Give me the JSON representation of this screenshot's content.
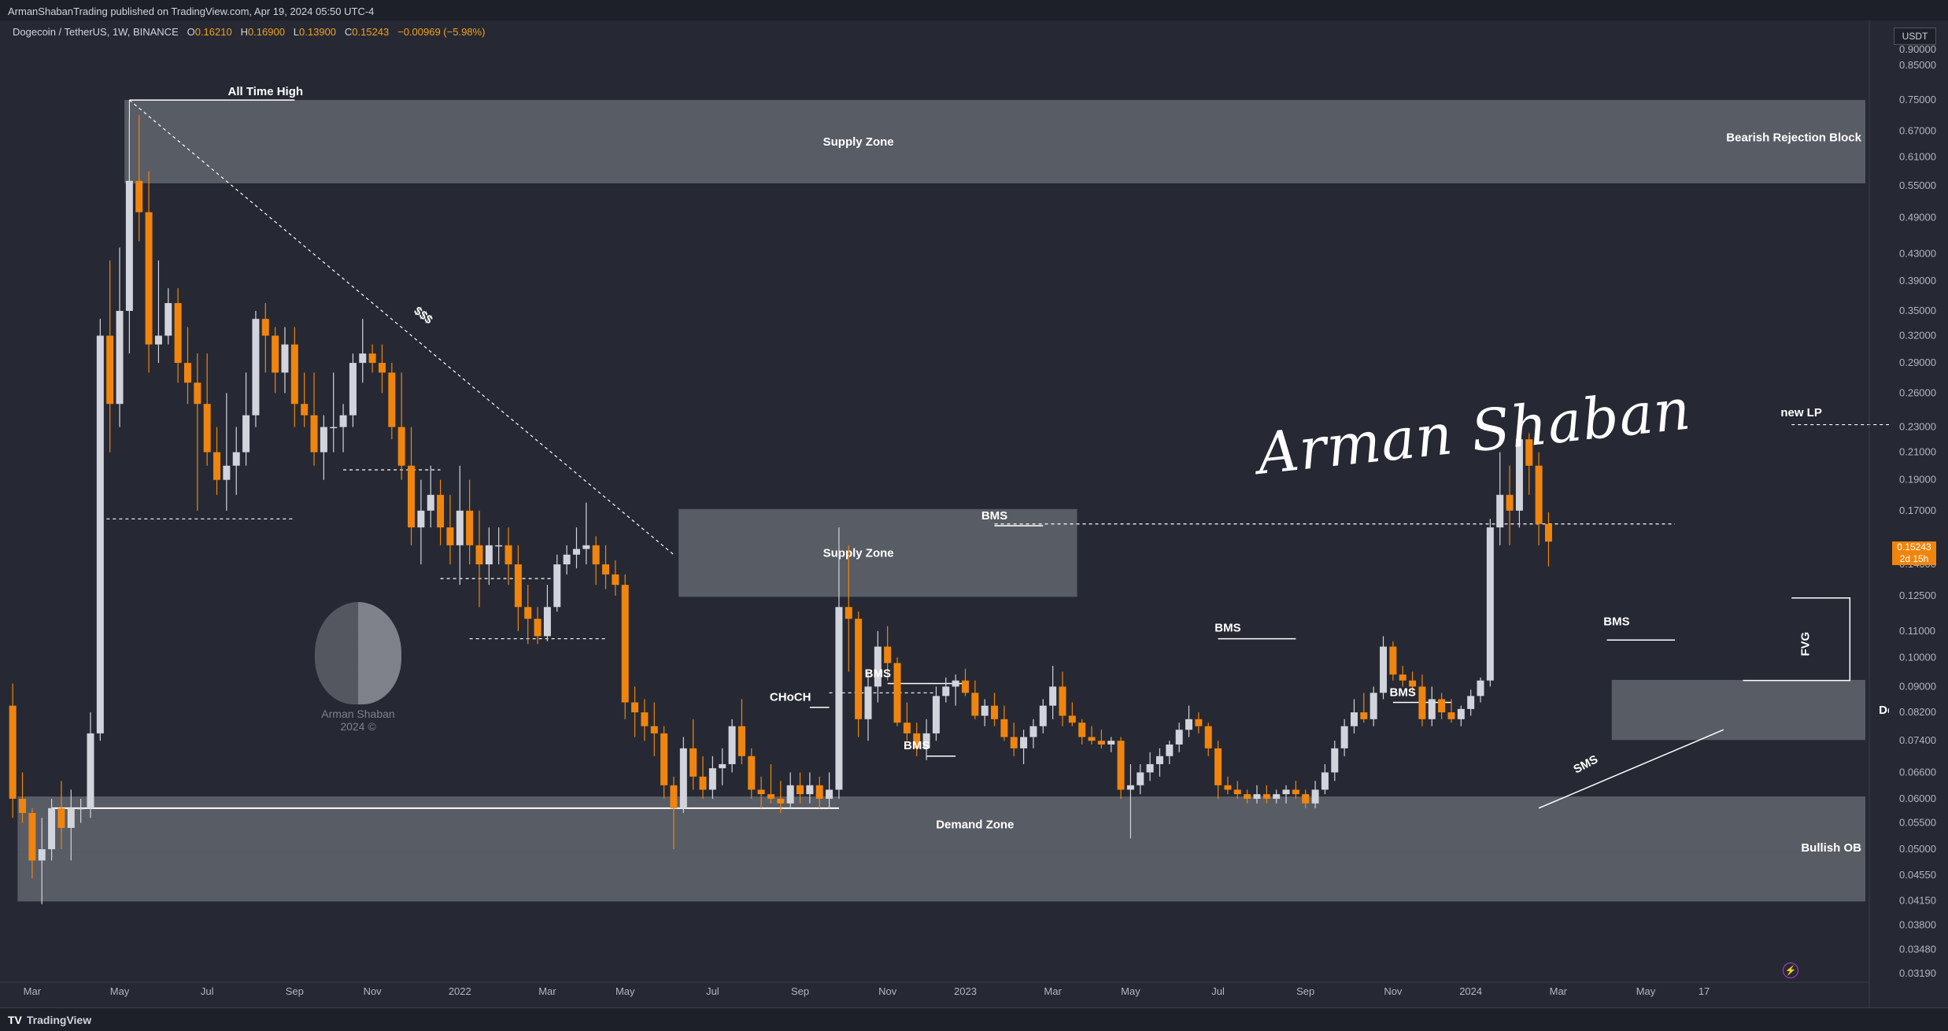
{
  "header": {
    "published": "ArmanShabanTrading published on TradingView.com, Apr 19, 2024 05:50 UTC-4"
  },
  "symbol": {
    "name": "Dogecoin / TetherUS, 1W, BINANCE",
    "open_label": "O",
    "open": "0.16210",
    "high_label": "H",
    "high": "0.16900",
    "low_label": "L",
    "low": "0.13900",
    "close_label": "C",
    "close": "0.15243",
    "change": "−0.00969 (−5.98%)"
  },
  "currency": "USDT",
  "price_tag": {
    "price": "0.15243",
    "countdown": "2d 15h"
  },
  "signature": "Arman Shaban",
  "watermark": {
    "line1": "Arman Shaban",
    "line2": "2024 ©"
  },
  "footer": {
    "brand": "TradingView",
    "logo": "TV"
  },
  "colors": {
    "background": "#262933",
    "up_candle": "#d1d4dc",
    "down_candle": "#f0850e",
    "zone": "#6a6d77",
    "price_tag": "#f0850e"
  },
  "chart_data": {
    "type": "candlestick",
    "title": "Dogecoin / TetherUS, 1W, BINANCE",
    "y_scale": "log",
    "ylim": [
      0.0319,
      0.9
    ],
    "y_ticks": [
      "0.90000",
      "0.85000",
      "0.75000",
      "0.67000",
      "0.61000",
      "0.55000",
      "0.49000",
      "0.43000",
      "0.39000",
      "0.35000",
      "0.32000",
      "0.29000",
      "0.26000",
      "0.23000",
      "0.21000",
      "0.19000",
      "0.17000",
      "0.14000",
      "0.12500",
      "0.11000",
      "0.10000",
      "0.09000",
      "0.08200",
      "0.07400",
      "0.06600",
      "0.06000",
      "0.05500",
      "0.05000",
      "0.04550",
      "0.04150",
      "0.03800",
      "0.03480",
      "0.03190"
    ],
    "x_ticks": [
      {
        "label": "Mar",
        "week": 2
      },
      {
        "label": "May",
        "week": 11
      },
      {
        "label": "Jul",
        "week": 20
      },
      {
        "label": "Sep",
        "week": 29
      },
      {
        "label": "Nov",
        "week": 37
      },
      {
        "label": "2022",
        "week": 46
      },
      {
        "label": "Mar",
        "week": 55
      },
      {
        "label": "May",
        "week": 63
      },
      {
        "label": "Jul",
        "week": 72
      },
      {
        "label": "Sep",
        "week": 81
      },
      {
        "label": "Nov",
        "week": 90
      },
      {
        "label": "2023",
        "week": 98
      },
      {
        "label": "Mar",
        "week": 107
      },
      {
        "label": "May",
        "week": 115
      },
      {
        "label": "Jul",
        "week": 124
      },
      {
        "label": "Sep",
        "week": 133
      },
      {
        "label": "Nov",
        "week": 142
      },
      {
        "label": "2024",
        "week": 150
      },
      {
        "label": "Mar",
        "week": 159
      },
      {
        "label": "May",
        "week": 168
      },
      {
        "label": "17",
        "week": 174
      }
    ],
    "candles": [
      [
        0.084,
        0.091,
        0.056,
        0.06
      ],
      [
        0.06,
        0.066,
        0.055,
        0.057
      ],
      [
        0.057,
        0.058,
        0.045,
        0.048
      ],
      [
        0.048,
        0.056,
        0.041,
        0.05
      ],
      [
        0.05,
        0.06,
        0.048,
        0.058
      ],
      [
        0.058,
        0.064,
        0.05,
        0.054
      ],
      [
        0.054,
        0.062,
        0.048,
        0.058
      ],
      [
        0.058,
        0.06,
        0.055,
        0.058
      ],
      [
        0.058,
        0.082,
        0.056,
        0.076
      ],
      [
        0.076,
        0.34,
        0.074,
        0.32
      ],
      [
        0.32,
        0.42,
        0.21,
        0.25
      ],
      [
        0.25,
        0.44,
        0.23,
        0.35
      ],
      [
        0.35,
        0.7,
        0.3,
        0.56
      ],
      [
        0.56,
        0.71,
        0.45,
        0.5
      ],
      [
        0.5,
        0.58,
        0.28,
        0.31
      ],
      [
        0.31,
        0.42,
        0.29,
        0.32
      ],
      [
        0.32,
        0.38,
        0.31,
        0.36
      ],
      [
        0.36,
        0.38,
        0.27,
        0.29
      ],
      [
        0.29,
        0.33,
        0.25,
        0.27
      ],
      [
        0.27,
        0.3,
        0.17,
        0.25
      ],
      [
        0.25,
        0.3,
        0.2,
        0.21
      ],
      [
        0.21,
        0.23,
        0.18,
        0.19
      ],
      [
        0.19,
        0.26,
        0.17,
        0.2
      ],
      [
        0.2,
        0.23,
        0.18,
        0.21
      ],
      [
        0.21,
        0.28,
        0.2,
        0.24
      ],
      [
        0.24,
        0.35,
        0.23,
        0.34
      ],
      [
        0.34,
        0.36,
        0.28,
        0.32
      ],
      [
        0.32,
        0.33,
        0.26,
        0.28
      ],
      [
        0.28,
        0.33,
        0.26,
        0.31
      ],
      [
        0.31,
        0.33,
        0.23,
        0.25
      ],
      [
        0.25,
        0.28,
        0.23,
        0.24
      ],
      [
        0.24,
        0.28,
        0.2,
        0.21
      ],
      [
        0.21,
        0.24,
        0.19,
        0.23
      ],
      [
        0.23,
        0.28,
        0.21,
        0.23
      ],
      [
        0.23,
        0.25,
        0.21,
        0.24
      ],
      [
        0.24,
        0.3,
        0.23,
        0.29
      ],
      [
        0.29,
        0.34,
        0.27,
        0.3
      ],
      [
        0.3,
        0.31,
        0.28,
        0.29
      ],
      [
        0.29,
        0.31,
        0.26,
        0.28
      ],
      [
        0.28,
        0.29,
        0.22,
        0.23
      ],
      [
        0.23,
        0.28,
        0.19,
        0.2
      ],
      [
        0.2,
        0.23,
        0.15,
        0.16
      ],
      [
        0.16,
        0.19,
        0.14,
        0.17
      ],
      [
        0.17,
        0.2,
        0.16,
        0.18
      ],
      [
        0.18,
        0.19,
        0.15,
        0.16
      ],
      [
        0.16,
        0.18,
        0.14,
        0.15
      ],
      [
        0.15,
        0.2,
        0.13,
        0.17
      ],
      [
        0.17,
        0.19,
        0.14,
        0.15
      ],
      [
        0.15,
        0.17,
        0.12,
        0.14
      ],
      [
        0.14,
        0.16,
        0.13,
        0.15
      ],
      [
        0.15,
        0.16,
        0.14,
        0.15
      ],
      [
        0.15,
        0.16,
        0.13,
        0.14
      ],
      [
        0.14,
        0.15,
        0.11,
        0.12
      ],
      [
        0.12,
        0.13,
        0.105,
        0.115
      ],
      [
        0.115,
        0.12,
        0.105,
        0.108
      ],
      [
        0.108,
        0.13,
        0.106,
        0.12
      ],
      [
        0.12,
        0.145,
        0.118,
        0.14
      ],
      [
        0.14,
        0.15,
        0.135,
        0.145
      ],
      [
        0.145,
        0.16,
        0.138,
        0.148
      ],
      [
        0.148,
        0.175,
        0.14,
        0.15
      ],
      [
        0.15,
        0.155,
        0.13,
        0.14
      ],
      [
        0.14,
        0.15,
        0.128,
        0.135
      ],
      [
        0.135,
        0.142,
        0.125,
        0.13
      ],
      [
        0.13,
        0.135,
        0.08,
        0.085
      ],
      [
        0.085,
        0.09,
        0.075,
        0.082
      ],
      [
        0.082,
        0.086,
        0.074,
        0.078
      ],
      [
        0.078,
        0.085,
        0.07,
        0.076
      ],
      [
        0.076,
        0.078,
        0.06,
        0.063
      ],
      [
        0.063,
        0.065,
        0.05,
        0.058
      ],
      [
        0.058,
        0.075,
        0.057,
        0.072
      ],
      [
        0.072,
        0.08,
        0.062,
        0.065
      ],
      [
        0.065,
        0.07,
        0.06,
        0.062
      ],
      [
        0.062,
        0.07,
        0.06,
        0.067
      ],
      [
        0.067,
        0.072,
        0.063,
        0.068
      ],
      [
        0.068,
        0.08,
        0.066,
        0.078
      ],
      [
        0.078,
        0.086,
        0.068,
        0.07
      ],
      [
        0.07,
        0.072,
        0.06,
        0.062
      ],
      [
        0.062,
        0.065,
        0.058,
        0.061
      ],
      [
        0.061,
        0.068,
        0.059,
        0.06
      ],
      [
        0.06,
        0.064,
        0.057,
        0.059
      ],
      [
        0.059,
        0.066,
        0.058,
        0.063
      ],
      [
        0.063,
        0.066,
        0.059,
        0.061
      ],
      [
        0.061,
        0.066,
        0.059,
        0.063
      ],
      [
        0.063,
        0.065,
        0.058,
        0.06
      ],
      [
        0.06,
        0.066,
        0.058,
        0.062
      ],
      [
        0.062,
        0.16,
        0.06,
        0.12
      ],
      [
        0.12,
        0.15,
        0.095,
        0.115
      ],
      [
        0.115,
        0.118,
        0.075,
        0.08
      ],
      [
        0.08,
        0.095,
        0.074,
        0.09
      ],
      [
        0.09,
        0.11,
        0.085,
        0.104
      ],
      [
        0.104,
        0.112,
        0.092,
        0.098
      ],
      [
        0.098,
        0.1,
        0.078,
        0.079
      ],
      [
        0.079,
        0.085,
        0.074,
        0.076
      ],
      [
        0.076,
        0.079,
        0.07,
        0.072
      ],
      [
        0.072,
        0.08,
        0.069,
        0.076
      ],
      [
        0.076,
        0.09,
        0.074,
        0.087
      ],
      [
        0.087,
        0.093,
        0.085,
        0.09
      ],
      [
        0.09,
        0.094,
        0.084,
        0.092
      ],
      [
        0.092,
        0.096,
        0.087,
        0.088
      ],
      [
        0.088,
        0.092,
        0.08,
        0.081
      ],
      [
        0.081,
        0.086,
        0.078,
        0.084
      ],
      [
        0.084,
        0.088,
        0.078,
        0.08
      ],
      [
        0.08,
        0.084,
        0.074,
        0.075
      ],
      [
        0.075,
        0.079,
        0.07,
        0.072
      ],
      [
        0.072,
        0.077,
        0.068,
        0.075
      ],
      [
        0.075,
        0.08,
        0.072,
        0.078
      ],
      [
        0.078,
        0.086,
        0.076,
        0.084
      ],
      [
        0.084,
        0.097,
        0.08,
        0.09
      ],
      [
        0.09,
        0.095,
        0.078,
        0.081
      ],
      [
        0.081,
        0.085,
        0.078,
        0.079
      ],
      [
        0.079,
        0.08,
        0.073,
        0.075
      ],
      [
        0.075,
        0.078,
        0.073,
        0.074
      ],
      [
        0.074,
        0.077,
        0.072,
        0.073
      ],
      [
        0.073,
        0.075,
        0.071,
        0.074
      ],
      [
        0.074,
        0.075,
        0.06,
        0.062
      ],
      [
        0.062,
        0.068,
        0.052,
        0.063
      ],
      [
        0.063,
        0.068,
        0.061,
        0.066
      ],
      [
        0.066,
        0.071,
        0.064,
        0.068
      ],
      [
        0.068,
        0.072,
        0.065,
        0.07
      ],
      [
        0.07,
        0.074,
        0.068,
        0.073
      ],
      [
        0.073,
        0.079,
        0.071,
        0.077
      ],
      [
        0.077,
        0.084,
        0.075,
        0.08
      ],
      [
        0.08,
        0.082,
        0.076,
        0.078
      ],
      [
        0.078,
        0.079,
        0.07,
        0.072
      ],
      [
        0.072,
        0.074,
        0.06,
        0.063
      ],
      [
        0.063,
        0.065,
        0.061,
        0.062
      ],
      [
        0.062,
        0.064,
        0.06,
        0.061
      ],
      [
        0.061,
        0.062,
        0.059,
        0.06
      ],
      [
        0.06,
        0.063,
        0.059,
        0.061
      ],
      [
        0.061,
        0.063,
        0.059,
        0.06
      ],
      [
        0.06,
        0.062,
        0.059,
        0.061
      ],
      [
        0.061,
        0.063,
        0.059,
        0.062
      ],
      [
        0.062,
        0.064,
        0.06,
        0.061
      ],
      [
        0.061,
        0.062,
        0.058,
        0.059
      ],
      [
        0.059,
        0.064,
        0.058,
        0.062
      ],
      [
        0.062,
        0.068,
        0.061,
        0.066
      ],
      [
        0.066,
        0.074,
        0.064,
        0.072
      ],
      [
        0.072,
        0.08,
        0.07,
        0.078
      ],
      [
        0.078,
        0.086,
        0.076,
        0.082
      ],
      [
        0.082,
        0.088,
        0.079,
        0.08
      ],
      [
        0.08,
        0.09,
        0.078,
        0.088
      ],
      [
        0.088,
        0.108,
        0.086,
        0.104
      ],
      [
        0.104,
        0.106,
        0.092,
        0.094
      ],
      [
        0.094,
        0.097,
        0.09,
        0.092
      ],
      [
        0.092,
        0.095,
        0.088,
        0.09
      ],
      [
        0.09,
        0.094,
        0.078,
        0.08
      ],
      [
        0.08,
        0.09,
        0.078,
        0.086
      ],
      [
        0.086,
        0.088,
        0.08,
        0.082
      ],
      [
        0.082,
        0.086,
        0.079,
        0.08
      ],
      [
        0.08,
        0.084,
        0.078,
        0.083
      ],
      [
        0.083,
        0.089,
        0.081,
        0.087
      ],
      [
        0.087,
        0.093,
        0.085,
        0.092
      ],
      [
        0.092,
        0.165,
        0.09,
        0.16
      ],
      [
        0.16,
        0.21,
        0.15,
        0.18
      ],
      [
        0.18,
        0.2,
        0.15,
        0.17
      ],
      [
        0.17,
        0.23,
        0.16,
        0.22
      ],
      [
        0.22,
        0.225,
        0.18,
        0.2
      ],
      [
        0.2,
        0.21,
        0.15,
        0.162
      ],
      [
        0.162,
        0.169,
        0.139,
        0.152
      ]
    ],
    "zones": [
      {
        "label": "Supply Zone",
        "from_week": 12,
        "to_week": 199,
        "top": 0.75,
        "bottom": 0.555,
        "label_week": 87
      },
      {
        "label": "Supply Zone",
        "from_week": 69,
        "to_week": 110,
        "top": 0.171,
        "bottom": 0.1245,
        "label_week": 87
      },
      {
        "label": "Demand Zone",
        "from_week": 1,
        "to_week": 199,
        "top": 0.0605,
        "bottom": 0.0495,
        "label_week": 99
      },
      {
        "label": "Demand Zone",
        "from_week": 165,
        "to_week": 199,
        "top": 0.0922,
        "bottom": 0.0742,
        "label_week": 196
      },
      {
        "label": "",
        "from_week": 1,
        "to_week": 199,
        "top": 0.0495,
        "bottom": 0.0414
      }
    ],
    "side_labels": [
      {
        "text": "Bearish Rejection Block",
        "price": 0.655
      },
      {
        "text": "Bullish OB",
        "price": 0.0503
      }
    ],
    "annotations": [
      {
        "text": "All Time High",
        "week": 26,
        "price": 0.75
      },
      {
        "text": "$$$",
        "week": 42,
        "price": 0.335
      },
      {
        "text": "BMS",
        "week": 101,
        "price": 0.162
      },
      {
        "text": "CHoCH",
        "week": 80,
        "price": 0.084
      },
      {
        "text": "BMS",
        "week": 89,
        "price": 0.0915
      },
      {
        "text": "BMS",
        "week": 93,
        "price": 0.0705
      },
      {
        "text": "BMS",
        "week": 125,
        "price": 0.108
      },
      {
        "text": "BMS",
        "week": 143,
        "price": 0.0855
      },
      {
        "text": "BMS",
        "week": 165,
        "price": 0.1105
      },
      {
        "text": "SMS",
        "week": 162,
        "price": 0.066
      },
      {
        "text": "FVG",
        "week": 184,
        "price": 0.105
      },
      {
        "text": "new LP",
        "week": 184,
        "price": 0.235
      }
    ]
  }
}
